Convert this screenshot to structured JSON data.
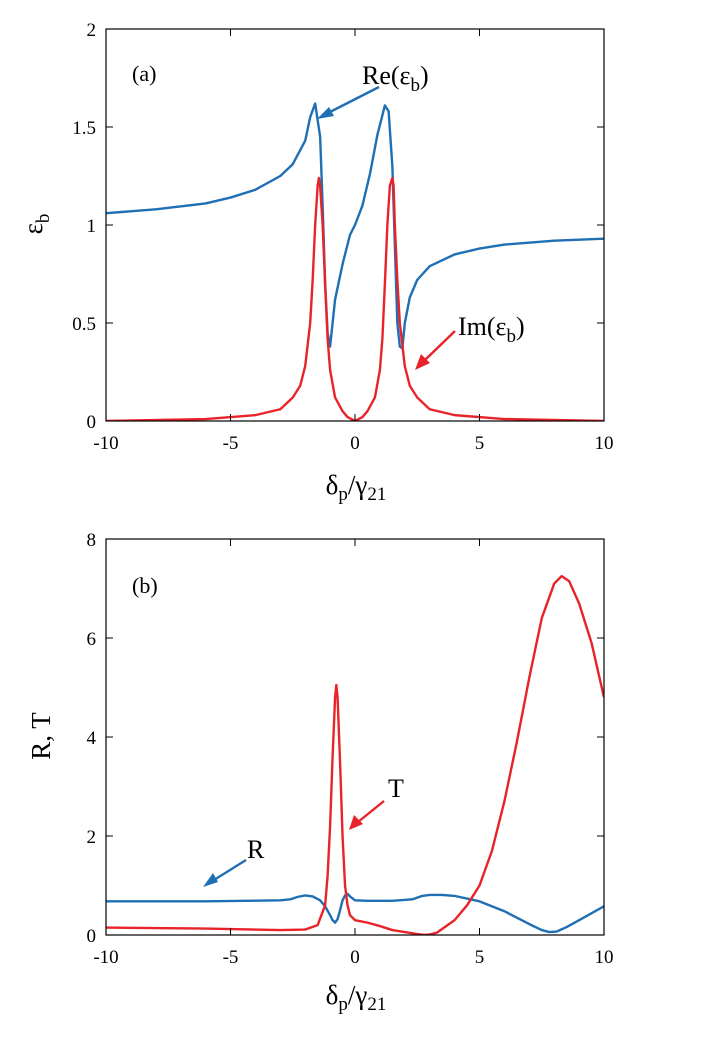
{
  "colors": {
    "blue": "#1f6fb4",
    "red": "#e8232a"
  },
  "chart_data": [
    {
      "type": "line",
      "panel_label": "(a)",
      "x_label": "δp/γ21",
      "y_label": "εb",
      "x_ticks": [
        "-10",
        "-5",
        "0",
        "5",
        "10"
      ],
      "y_ticks": [
        "0",
        "0.5",
        "1",
        "1.5",
        "2"
      ],
      "xlim": [
        -10,
        10
      ],
      "ylim": [
        0,
        2
      ],
      "series": [
        {
          "name": "Re(εb)",
          "color": "#1f6fb4",
          "x": [
            -10,
            -8,
            -6,
            -5,
            -4,
            -3,
            -2.5,
            -2,
            -1.8,
            -1.6,
            -1.4,
            -1.3,
            -1.2,
            -1.1,
            -1.0,
            -0.8,
            -0.5,
            -0.2,
            0,
            0.3,
            0.6,
            0.9,
            1.2,
            1.35,
            1.5,
            1.6,
            1.7,
            1.8,
            1.9,
            2.0,
            2.2,
            2.5,
            3,
            4,
            5,
            6,
            8,
            10
          ],
          "y": [
            1.06,
            1.08,
            1.11,
            1.14,
            1.18,
            1.25,
            1.31,
            1.43,
            1.55,
            1.62,
            1.45,
            1.1,
            0.7,
            0.45,
            0.38,
            0.62,
            0.8,
            0.95,
            1.0,
            1.1,
            1.26,
            1.46,
            1.61,
            1.58,
            1.3,
            0.9,
            0.5,
            0.38,
            0.37,
            0.5,
            0.63,
            0.72,
            0.79,
            0.85,
            0.88,
            0.9,
            0.92,
            0.93
          ]
        },
        {
          "name": "Im(εb)",
          "color": "#e8232a",
          "x": [
            -10,
            -6,
            -4,
            -3,
            -2.5,
            -2.2,
            -2.0,
            -1.8,
            -1.7,
            -1.6,
            -1.5,
            -1.45,
            -1.4,
            -1.3,
            -1.2,
            -1.1,
            -1.0,
            -0.8,
            -0.5,
            -0.3,
            0,
            0.3,
            0.5,
            0.8,
            1.0,
            1.1,
            1.2,
            1.3,
            1.4,
            1.5,
            1.55,
            1.6,
            1.7,
            1.8,
            2.0,
            2.2,
            2.5,
            3,
            4,
            6,
            10
          ],
          "y": [
            0.0,
            0.01,
            0.03,
            0.06,
            0.12,
            0.18,
            0.28,
            0.5,
            0.72,
            1.0,
            1.2,
            1.24,
            1.2,
            1.0,
            0.7,
            0.42,
            0.26,
            0.12,
            0.05,
            0.02,
            0.0,
            0.02,
            0.05,
            0.12,
            0.26,
            0.42,
            0.7,
            1.0,
            1.2,
            1.24,
            1.2,
            1.0,
            0.72,
            0.5,
            0.28,
            0.18,
            0.12,
            0.06,
            0.03,
            0.01,
            0.0
          ]
        }
      ],
      "annotations": [
        {
          "text": "Re(εb)",
          "points_to": [
            -1.6,
            1.52
          ]
        },
        {
          "text": "Im(εb)",
          "points_to": [
            2.1,
            0.25
          ]
        }
      ]
    },
    {
      "type": "line",
      "panel_label": "(b)",
      "x_label": "δp/γ21",
      "y_label": "R, T",
      "x_ticks": [
        "-10",
        "-5",
        "0",
        "5",
        "10"
      ],
      "y_ticks": [
        "0",
        "2",
        "4",
        "6",
        "8"
      ],
      "xlim": [
        -10,
        10
      ],
      "ylim": [
        0,
        8
      ],
      "series": [
        {
          "name": "R",
          "color": "#1f6fb4",
          "x": [
            -10,
            -6,
            -3,
            -2.6,
            -2.3,
            -2.0,
            -1.7,
            -1.4,
            -1.2,
            -1.0,
            -0.9,
            -0.8,
            -0.7,
            -0.6,
            -0.5,
            -0.4,
            -0.3,
            -0.2,
            0,
            0.5,
            1.5,
            2.3,
            2.7,
            3.0,
            3.5,
            4,
            5,
            6,
            7,
            7.5,
            7.8,
            8.1,
            8.5,
            9,
            10
          ],
          "y": [
            0.68,
            0.68,
            0.7,
            0.72,
            0.77,
            0.8,
            0.78,
            0.7,
            0.58,
            0.4,
            0.3,
            0.25,
            0.32,
            0.5,
            0.7,
            0.8,
            0.83,
            0.78,
            0.7,
            0.69,
            0.69,
            0.72,
            0.79,
            0.81,
            0.81,
            0.79,
            0.68,
            0.48,
            0.22,
            0.1,
            0.06,
            0.07,
            0.16,
            0.3,
            0.58
          ]
        },
        {
          "name": "T",
          "color": "#e8232a",
          "x": [
            -10,
            -6,
            -3,
            -2,
            -1.5,
            -1.2,
            -1.1,
            -1.0,
            -0.9,
            -0.8,
            -0.75,
            -0.7,
            -0.6,
            -0.5,
            -0.4,
            -0.3,
            -0.2,
            0,
            0.5,
            1,
            1.5,
            2,
            2.5,
            2.8,
            3,
            3.3,
            4,
            4.5,
            5,
            5.5,
            6,
            6.5,
            7,
            7.5,
            8,
            8.3,
            8.6,
            9,
            9.5,
            10
          ],
          "y": [
            0.15,
            0.13,
            0.1,
            0.11,
            0.2,
            0.6,
            1.2,
            2.2,
            3.6,
            4.8,
            5.05,
            4.8,
            3.5,
            2.0,
            1.0,
            0.6,
            0.4,
            0.3,
            0.25,
            0.18,
            0.1,
            0.06,
            0.02,
            0.0,
            0.01,
            0.05,
            0.3,
            0.6,
            1.0,
            1.7,
            2.7,
            3.9,
            5.2,
            6.4,
            7.1,
            7.25,
            7.15,
            6.7,
            5.9,
            4.8
          ]
        }
      ],
      "annotations": [
        {
          "text": "R",
          "points_to": [
            -6.2,
            0.72
          ]
        },
        {
          "text": "T",
          "points_to": [
            -0.1,
            1.55
          ]
        }
      ]
    }
  ]
}
